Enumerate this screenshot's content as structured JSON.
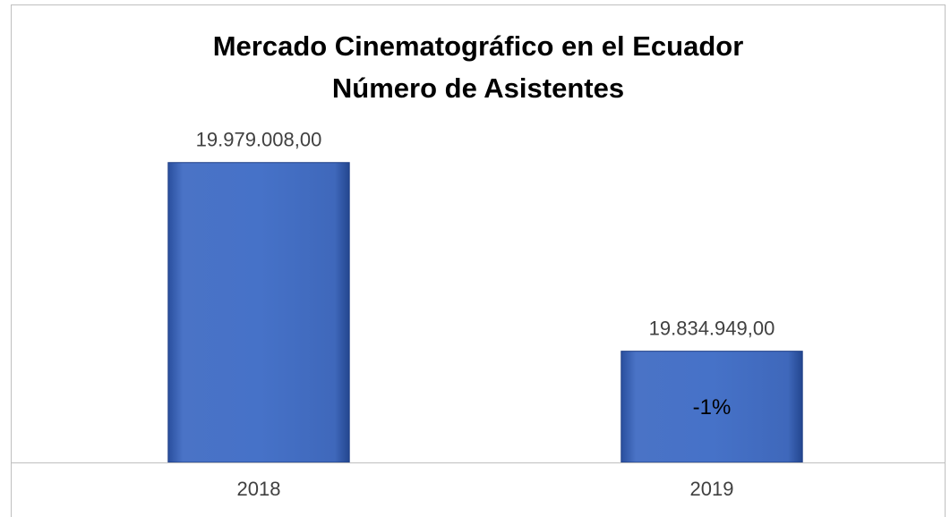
{
  "chart_data": {
    "type": "bar",
    "title": "Mercado Cinematográfico en el Ecuador",
    "subtitle": "Número de Asistentes",
    "categories": [
      "2018",
      "2019"
    ],
    "values": [
      19979008,
      19834949
    ],
    "value_labels": [
      "19.979.008,00",
      "19.834.949,00"
    ],
    "color": "#4472c4",
    "ylim": [
      19750000,
      20000000
    ],
    "annotations": [
      {
        "category": "2019",
        "text": "-1%"
      }
    ]
  }
}
